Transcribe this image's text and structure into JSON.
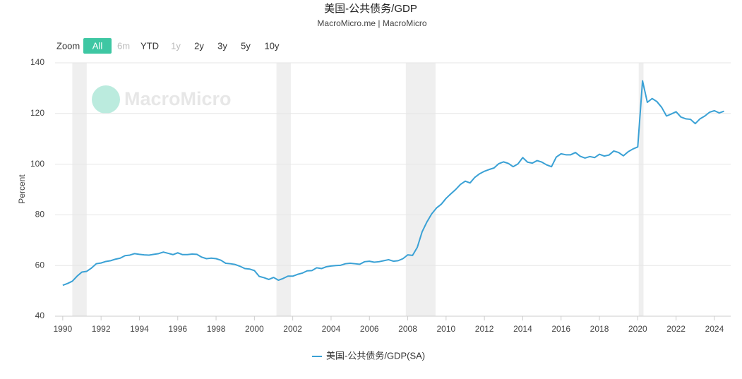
{
  "chart_data": {
    "type": "line",
    "title": "美国-公共债务/GDP",
    "subtitle": "MacroMicro.me | MacroMicro",
    "watermark": "MacroMicro",
    "ylabel": "Percent",
    "zoom": {
      "label": "Zoom",
      "buttons": [
        {
          "label": "All",
          "state": "selected"
        },
        {
          "label": "6m",
          "state": "disabled"
        },
        {
          "label": "YTD",
          "state": "enabled"
        },
        {
          "label": "1y",
          "state": "disabled"
        },
        {
          "label": "2y",
          "state": "enabled"
        },
        {
          "label": "3y",
          "state": "enabled"
        },
        {
          "label": "5y",
          "state": "enabled"
        },
        {
          "label": "10y",
          "state": "enabled"
        }
      ]
    },
    "xlim": [
      1989.6,
      2024.85
    ],
    "xticks": [
      1990,
      1992,
      1994,
      1996,
      1998,
      2000,
      2002,
      2004,
      2006,
      2008,
      2010,
      2012,
      2014,
      2016,
      2018,
      2020,
      2022,
      2024
    ],
    "ylim": [
      40,
      140
    ],
    "yticks": [
      40,
      60,
      80,
      100,
      120,
      140
    ],
    "grid": true,
    "recessions": [
      [
        1990.5,
        1991.25
      ],
      [
        2001.15,
        2001.9
      ],
      [
        2007.9,
        2009.45
      ],
      [
        2020.05,
        2020.3
      ]
    ],
    "recession_color": "#efefef",
    "x": [
      1990,
      1990.25,
      1990.5,
      1990.75,
      1991,
      1991.25,
      1991.5,
      1991.75,
      1992,
      1992.25,
      1992.5,
      1992.75,
      1993,
      1993.25,
      1993.5,
      1993.75,
      1994,
      1994.25,
      1994.5,
      1994.75,
      1995,
      1995.25,
      1995.5,
      1995.75,
      1996,
      1996.25,
      1996.5,
      1996.75,
      1997,
      1997.25,
      1997.5,
      1997.75,
      1998,
      1998.25,
      1998.5,
      1998.75,
      1999,
      1999.25,
      1999.5,
      1999.75,
      2000,
      2000.25,
      2000.5,
      2000.75,
      2001,
      2001.25,
      2001.5,
      2001.75,
      2002,
      2002.25,
      2002.5,
      2002.75,
      2003,
      2003.25,
      2003.5,
      2003.75,
      2004,
      2004.25,
      2004.5,
      2004.75,
      2005,
      2005.25,
      2005.5,
      2005.75,
      2006,
      2006.25,
      2006.5,
      2006.75,
      2007,
      2007.25,
      2007.5,
      2007.75,
      2008,
      2008.25,
      2008.5,
      2008.75,
      2009,
      2009.25,
      2009.5,
      2009.75,
      2010,
      2010.25,
      2010.5,
      2010.75,
      2011,
      2011.25,
      2011.5,
      2011.75,
      2012,
      2012.25,
      2012.5,
      2012.75,
      2013,
      2013.25,
      2013.5,
      2013.75,
      2014,
      2014.25,
      2014.5,
      2014.75,
      2015,
      2015.25,
      2015.5,
      2015.75,
      2016,
      2016.25,
      2016.5,
      2016.75,
      2017,
      2017.25,
      2017.5,
      2017.75,
      2018,
      2018.25,
      2018.5,
      2018.75,
      2019,
      2019.25,
      2019.5,
      2019.75,
      2020,
      2020.25,
      2020.5,
      2020.75,
      2021,
      2021.25,
      2021.5,
      2021.75,
      2022,
      2022.25,
      2022.5,
      2022.75,
      2023,
      2023.25,
      2023.5,
      2023.75,
      2024,
      2024.25,
      2024.5
    ],
    "series": [
      {
        "name": "美国-公共债务/GDP(SA)",
        "color": "#3aa1d5",
        "values": [
          52.2,
          52.9,
          53.8,
          55.8,
          57.4,
          57.7,
          59.0,
          60.7,
          61.0,
          61.6,
          61.9,
          62.5,
          62.9,
          63.9,
          64.1,
          64.7,
          64.4,
          64.2,
          64.1,
          64.4,
          64.7,
          65.3,
          64.8,
          64.3,
          65.0,
          64.3,
          64.3,
          64.5,
          64.4,
          63.3,
          62.7,
          62.9,
          62.7,
          62.1,
          60.9,
          60.7,
          60.4,
          59.7,
          58.8,
          58.6,
          58.0,
          55.7,
          55.2,
          54.5,
          55.3,
          54.2,
          54.9,
          55.8,
          55.8,
          56.5,
          57.0,
          57.9,
          58.0,
          59.1,
          58.8,
          59.5,
          59.8,
          60.0,
          60.1,
          60.7,
          60.9,
          60.7,
          60.5,
          61.5,
          61.7,
          61.3,
          61.5,
          61.9,
          62.3,
          61.7,
          61.9,
          62.7,
          64.2,
          64.0,
          67.2,
          73.3,
          77.2,
          80.4,
          82.7,
          84.2,
          86.5,
          88.3,
          90.0,
          92.0,
          93.3,
          92.6,
          94.8,
          96.2,
          97.2,
          97.9,
          98.5,
          100.2,
          100.9,
          100.3,
          99.0,
          100.1,
          102.6,
          100.8,
          100.4,
          101.4,
          100.8,
          99.7,
          99.0,
          102.8,
          104.1,
          103.7,
          103.7,
          104.6,
          103.1,
          102.4,
          103.0,
          102.6,
          103.9,
          103.2,
          103.6,
          105.2,
          104.6,
          103.3,
          104.9,
          106.0,
          106.8,
          132.9,
          124.4,
          125.9,
          124.7,
          122.4,
          119.0,
          119.8,
          120.7,
          118.6,
          117.9,
          117.7,
          116.0,
          117.9,
          119.0,
          120.5,
          121.1,
          120.2,
          120.9
        ]
      }
    ]
  }
}
